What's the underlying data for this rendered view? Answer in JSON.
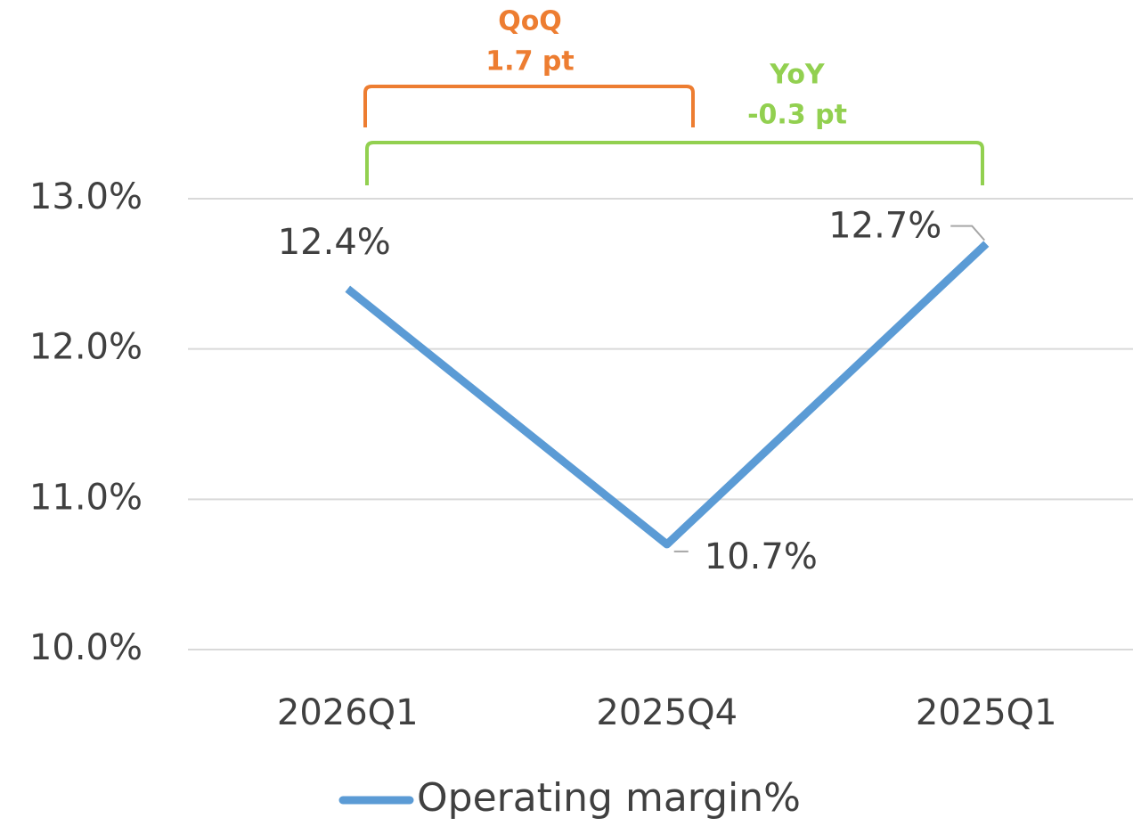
{
  "chart_data": {
    "type": "line",
    "categories": [
      "2026Q1",
      "2025Q4",
      "2025Q1"
    ],
    "series": [
      {
        "name": "Operating margin%",
        "color": "#5b9bd5",
        "values": [
          12.4,
          10.7,
          12.7
        ],
        "value_labels": [
          "12.4%",
          "10.7%",
          "12.7%"
        ]
      }
    ],
    "ylim": [
      10,
      13
    ],
    "yticks": [
      {
        "value": 10,
        "label": "10.0%"
      },
      {
        "value": 11,
        "label": "11.0%"
      },
      {
        "value": 12,
        "label": "12.0%"
      },
      {
        "value": 13,
        "label": "13.0%"
      }
    ],
    "grid": true,
    "legend": "bottom",
    "annotations": [
      {
        "lines": [
          "QoQ",
          "1.7 pt"
        ],
        "color": "#ed7d31"
      },
      {
        "lines": [
          "YoY",
          "-0.3 pt"
        ],
        "color": "#92d050"
      }
    ]
  }
}
